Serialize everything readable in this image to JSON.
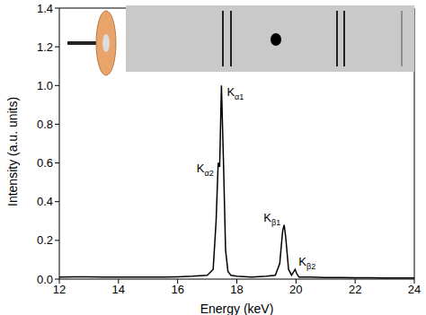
{
  "chart_data": {
    "type": "line",
    "xlabel": "Energy (keV)",
    "ylabel": "Intensity (a.u. units)",
    "xlim": [
      12,
      24
    ],
    "xticks": [
      12,
      14,
      16,
      18,
      20,
      22,
      24
    ],
    "ylim": [
      0,
      1.4
    ],
    "yticks": [
      {
        "value": 0,
        "label": "0.0"
      },
      0.2,
      0.4,
      0.6,
      0.8,
      {
        "value": 1,
        "label": "1.0"
      },
      1.2,
      1.4
    ],
    "grid": false,
    "color": "#000000",
    "x": [
      12,
      12.5,
      13,
      13.5,
      14,
      14.5,
      15,
      15.5,
      16,
      16.5,
      17,
      17.2,
      17.3,
      17.37,
      17.42,
      17.48,
      17.55,
      17.62,
      17.7,
      17.8,
      18,
      18.5,
      19,
      19.3,
      19.45,
      19.55,
      19.6,
      19.65,
      19.75,
      19.85,
      19.93,
      19.97,
      20.02,
      20.1,
      20.5,
      21,
      21.5,
      22,
      22.5,
      23,
      23.5,
      24
    ],
    "values": [
      0.01,
      0.012,
      0.012,
      0.01,
      0.01,
      0.01,
      0.01,
      0.01,
      0.012,
      0.015,
      0.02,
      0.05,
      0.3,
      0.6,
      0.58,
      1.0,
      0.6,
      0.15,
      0.04,
      0.02,
      0.015,
      0.01,
      0.015,
      0.02,
      0.08,
      0.25,
      0.28,
      0.22,
      0.05,
      0.02,
      0.04,
      0.05,
      0.03,
      0.01,
      0.01,
      0.008,
      0.008,
      0.007,
      0.007,
      0.006,
      0.006,
      0.006
    ],
    "annotations": [
      {
        "text": "Kα1",
        "x": 17.48,
        "y": 1.0
      },
      {
        "text": "Kα2",
        "x": 17.37,
        "y": 0.6
      },
      {
        "text": "Kβ1",
        "x": 19.6,
        "y": 0.28
      },
      {
        "text": "Kβ2",
        "x": 19.97,
        "y": 0.05
      }
    ]
  }
}
